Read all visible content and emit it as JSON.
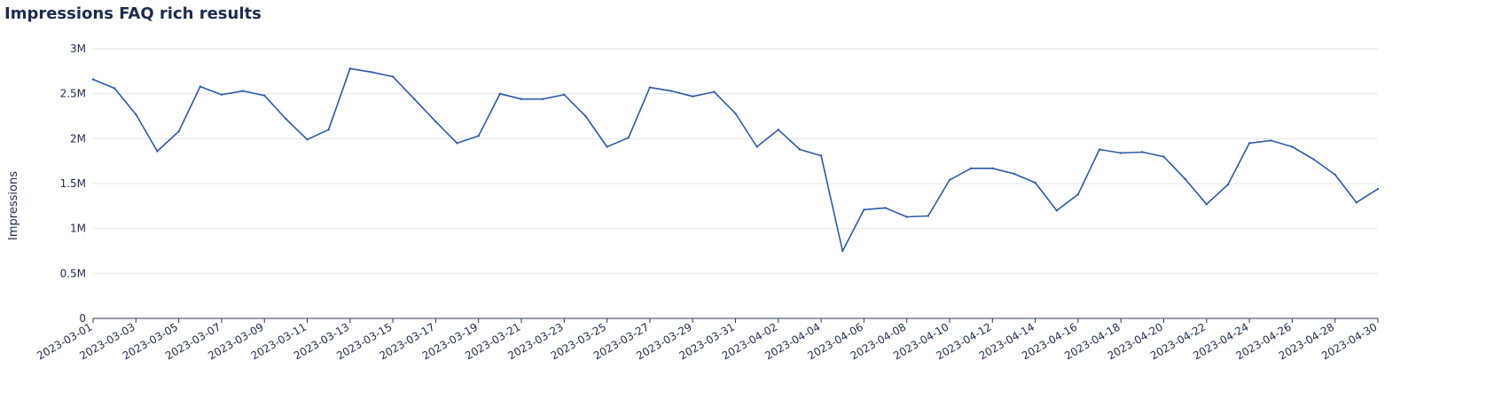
{
  "chart_data": {
    "type": "line",
    "title": "Impressions FAQ rich results",
    "xlabel": "",
    "ylabel": "Impressions",
    "ylim": [
      0,
      3000000
    ],
    "yticks": [
      {
        "value": 0,
        "label": "0"
      },
      {
        "value": 500000,
        "label": "0.5M"
      },
      {
        "value": 1000000,
        "label": "1M"
      },
      {
        "value": 1500000,
        "label": "1.5M"
      },
      {
        "value": 2000000,
        "label": "2M"
      },
      {
        "value": 2500000,
        "label": "2.5M"
      },
      {
        "value": 3000000,
        "label": "3M"
      }
    ],
    "grid": true,
    "color": "#2c5aa8",
    "x": [
      "2023-03-01",
      "2023-03-02",
      "2023-03-03",
      "2023-03-04",
      "2023-03-05",
      "2023-03-06",
      "2023-03-07",
      "2023-03-08",
      "2023-03-09",
      "2023-03-10",
      "2023-03-11",
      "2023-03-12",
      "2023-03-13",
      "2023-03-14",
      "2023-03-15",
      "2023-03-16",
      "2023-03-17",
      "2023-03-18",
      "2023-03-19",
      "2023-03-20",
      "2023-03-21",
      "2023-03-22",
      "2023-03-23",
      "2023-03-24",
      "2023-03-25",
      "2023-03-26",
      "2023-03-27",
      "2023-03-28",
      "2023-03-29",
      "2023-03-30",
      "2023-03-31",
      "2023-04-01",
      "2023-04-02",
      "2023-04-03",
      "2023-04-04",
      "2023-04-05",
      "2023-04-06",
      "2023-04-07",
      "2023-04-08",
      "2023-04-09",
      "2023-04-10",
      "2023-04-11",
      "2023-04-12",
      "2023-04-13",
      "2023-04-14",
      "2023-04-15",
      "2023-04-16",
      "2023-04-17",
      "2023-04-18",
      "2023-04-19",
      "2023-04-20",
      "2023-04-21",
      "2023-04-22",
      "2023-04-23",
      "2023-04-24",
      "2023-04-25",
      "2023-04-26",
      "2023-04-27",
      "2023-04-28",
      "2023-04-29",
      "2023-04-30"
    ],
    "xtick_labels": [
      "2023-03-01",
      "2023-03-03",
      "2023-03-05",
      "2023-03-07",
      "2023-03-09",
      "2023-03-11",
      "2023-03-13",
      "2023-03-15",
      "2023-03-17",
      "2023-03-19",
      "2023-03-21",
      "2023-03-23",
      "2023-03-25",
      "2023-03-27",
      "2023-03-29",
      "2023-03-31",
      "2023-04-02",
      "2023-04-04",
      "2023-04-06",
      "2023-04-08",
      "2023-04-10",
      "2023-04-12",
      "2023-04-14",
      "2023-04-16",
      "2023-04-18",
      "2023-04-20",
      "2023-04-22",
      "2023-04-24",
      "2023-04-26",
      "2023-04-28",
      "2023-04-30"
    ],
    "series": [
      {
        "values": [
          2660000,
          2560000,
          2270000,
          1860000,
          2080000,
          2580000,
          2490000,
          2530000,
          2480000,
          2220000,
          1990000,
          2100000,
          2780000,
          2740000,
          2690000,
          2440000,
          2190000,
          1950000,
          2030000,
          2500000,
          2440000,
          2440000,
          2490000,
          2250000,
          1910000,
          2010000,
          2570000,
          2530000,
          2470000,
          2520000,
          2280000,
          1910000,
          2100000,
          1880000,
          1810000,
          750000,
          1210000,
          1230000,
          1130000,
          1140000,
          1540000,
          1670000,
          1670000,
          1610000,
          1510000,
          1200000,
          1380000,
          1880000,
          1840000,
          1850000,
          1800000,
          1550000,
          1270000,
          1490000,
          1950000,
          1980000,
          1910000,
          1770000,
          1600000,
          1290000,
          1440000
        ]
      }
    ]
  }
}
